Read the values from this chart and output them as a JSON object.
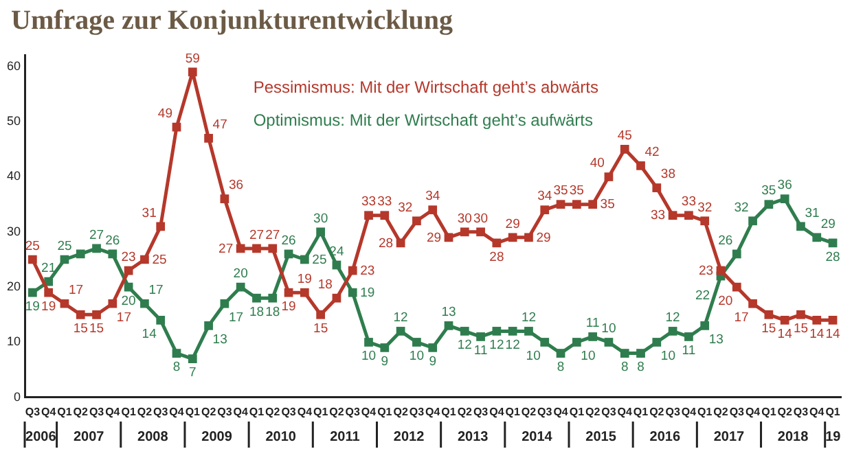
{
  "chart_data": {
    "type": "line",
    "title": "Umfrage zur Konjunkturentwicklung",
    "x": [
      "2006-08-15",
      "2006-11-15",
      "2007-02-15",
      "2007-05-15",
      "2007-08-15",
      "2007-11-15",
      "2008-02-15",
      "2008-05-15",
      "2008-08-15",
      "2008-11-15",
      "2009-02-15",
      "2009-05-15",
      "2009-08-15",
      "2009-11-15",
      "2010-02-15",
      "2010-05-15",
      "2010-08-15",
      "2010-11-15",
      "2011-02-15",
      "2011-05-15",
      "2011-08-15",
      "2011-11-15",
      "2012-02-15",
      "2012-05-15",
      "2012-08-15",
      "2012-11-15",
      "2013-02-15",
      "2013-05-15",
      "2013-08-15",
      "2013-11-15",
      "2014-02-15",
      "2014-05-15",
      "2014-08-15",
      "2014-11-15",
      "2015-02-15",
      "2015-05-15",
      "2015-08-15",
      "2015-11-15",
      "2016-02-15",
      "2016-05-15",
      "2016-08-15",
      "2016-11-15",
      "2017-02-15",
      "2017-05-15",
      "2017-08-15",
      "2017-11-15",
      "2018-02-15",
      "2018-05-15",
      "2018-08-15",
      "2018-11-15",
      "2019-02-15"
    ],
    "xlim": [
      "2006-07-01",
      "2019-04-01"
    ],
    "xticks": [
      {
        "value": "2006-08-15",
        "label": "Q3"
      },
      {
        "value": "2006-11-15",
        "label": "Q4"
      },
      {
        "value": "2007-02-15",
        "label": "Q1"
      },
      {
        "value": "2007-05-15",
        "label": "Q2"
      },
      {
        "value": "2007-08-15",
        "label": "Q3"
      },
      {
        "value": "2007-11-15",
        "label": "Q4"
      },
      {
        "value": "2008-02-15",
        "label": "Q1"
      },
      {
        "value": "2008-05-15",
        "label": "Q2"
      },
      {
        "value": "2008-08-15",
        "label": "Q3"
      },
      {
        "value": "2008-11-15",
        "label": "Q4"
      },
      {
        "value": "2009-02-15",
        "label": "Q1"
      },
      {
        "value": "2009-05-15",
        "label": "Q2"
      },
      {
        "value": "2009-08-15",
        "label": "Q3"
      },
      {
        "value": "2009-11-15",
        "label": "Q4"
      },
      {
        "value": "2010-02-15",
        "label": "Q1"
      },
      {
        "value": "2010-05-15",
        "label": "Q2"
      },
      {
        "value": "2010-08-15",
        "label": "Q3"
      },
      {
        "value": "2010-11-15",
        "label": "Q4"
      },
      {
        "value": "2011-02-15",
        "label": "Q1"
      },
      {
        "value": "2011-05-15",
        "label": "Q2"
      },
      {
        "value": "2011-08-15",
        "label": "Q3"
      },
      {
        "value": "2011-11-15",
        "label": "Q4"
      },
      {
        "value": "2012-02-15",
        "label": "Q1"
      },
      {
        "value": "2012-05-15",
        "label": "Q2"
      },
      {
        "value": "2012-08-15",
        "label": "Q3"
      },
      {
        "value": "2012-11-15",
        "label": "Q4"
      },
      {
        "value": "2013-02-15",
        "label": "Q1"
      },
      {
        "value": "2013-05-15",
        "label": "Q2"
      },
      {
        "value": "2013-08-15",
        "label": "Q3"
      },
      {
        "value": "2013-11-15",
        "label": "Q4"
      },
      {
        "value": "2014-02-15",
        "label": "Q1"
      },
      {
        "value": "2014-05-15",
        "label": "Q2"
      },
      {
        "value": "2014-08-15",
        "label": "Q3"
      },
      {
        "value": "2014-11-15",
        "label": "Q4"
      },
      {
        "value": "2015-02-15",
        "label": "Q1"
      },
      {
        "value": "2015-05-15",
        "label": "Q2"
      },
      {
        "value": "2015-08-15",
        "label": "Q3"
      },
      {
        "value": "2015-11-15",
        "label": "Q4"
      },
      {
        "value": "2016-02-15",
        "label": "Q1"
      },
      {
        "value": "2016-05-15",
        "label": "Q2"
      },
      {
        "value": "2016-08-15",
        "label": "Q3"
      },
      {
        "value": "2016-11-15",
        "label": "Q4"
      },
      {
        "value": "2017-02-15",
        "label": "Q1"
      },
      {
        "value": "2017-05-15",
        "label": "Q2"
      },
      {
        "value": "2017-08-15",
        "label": "Q3"
      },
      {
        "value": "2017-11-15",
        "label": "Q4"
      },
      {
        "value": "2018-02-15",
        "label": "Q1"
      },
      {
        "value": "2018-05-15",
        "label": "Q2"
      },
      {
        "value": "2018-08-15",
        "label": "Q3"
      },
      {
        "value": "2018-11-15",
        "label": "Q4"
      },
      {
        "value": "2019-02-15",
        "label": "Q1"
      }
    ],
    "ylim": [
      0,
      62
    ],
    "yticks": [
      0,
      10,
      20,
      30,
      40,
      50,
      60
    ],
    "annotations": [
      "2006",
      "2007",
      "2008",
      "2009",
      "2010",
      "2011",
      "2012",
      "2013",
      "2014",
      "2015",
      "2016",
      "2017",
      "2018",
      "19"
    ],
    "series": [
      {
        "name": "Pessimismus: Mit der Wirtschaft geht’s abwärts",
        "color": "#b5382b",
        "values": [
          25,
          19,
          17,
          15,
          15,
          17,
          23,
          25,
          31,
          49,
          59,
          47,
          36,
          27,
          27,
          27,
          19,
          19,
          15,
          18,
          23,
          33,
          33,
          28,
          32,
          34,
          29,
          30,
          30,
          28,
          29,
          29,
          34,
          35,
          35,
          35,
          40,
          45,
          42,
          38,
          33,
          33,
          32,
          23,
          20,
          17,
          15,
          14,
          15,
          14,
          14
        ]
      },
      {
        "name": "Optimismus: Mit der Wirtschaft geht’s aufwärts",
        "color": "#2f7d4e",
        "values": [
          19,
          21,
          25,
          26,
          27,
          26,
          20,
          17,
          14,
          8,
          7,
          13,
          17,
          20,
          18,
          18,
          26,
          25,
          30,
          24,
          19,
          10,
          9,
          12,
          10,
          9,
          13,
          12,
          11,
          12,
          12,
          12,
          10,
          8,
          10,
          11,
          10,
          8,
          8,
          10,
          12,
          11,
          13,
          22,
          26,
          32,
          35,
          36,
          31,
          29,
          28
        ],
        "value_labels": [
          "19",
          "21",
          "25",
          null,
          "27",
          "26",
          "20",
          "17",
          "14",
          "8",
          "7",
          "13",
          "17",
          "20",
          "18",
          "18",
          "26",
          "25",
          "30",
          "24",
          "19",
          "10",
          "9",
          "12",
          "10",
          "9",
          "13",
          "12",
          "11",
          "12",
          "12",
          "12",
          "10",
          "8",
          "10",
          "11",
          "10",
          "8",
          "8",
          "10",
          "12",
          "11",
          "13",
          "22",
          "26",
          "32",
          "35",
          "36",
          "31",
          "29",
          "28"
        ]
      }
    ],
    "data_labels": true,
    "marker": "square",
    "line_style": "solid",
    "grid": false,
    "legend": "top"
  }
}
